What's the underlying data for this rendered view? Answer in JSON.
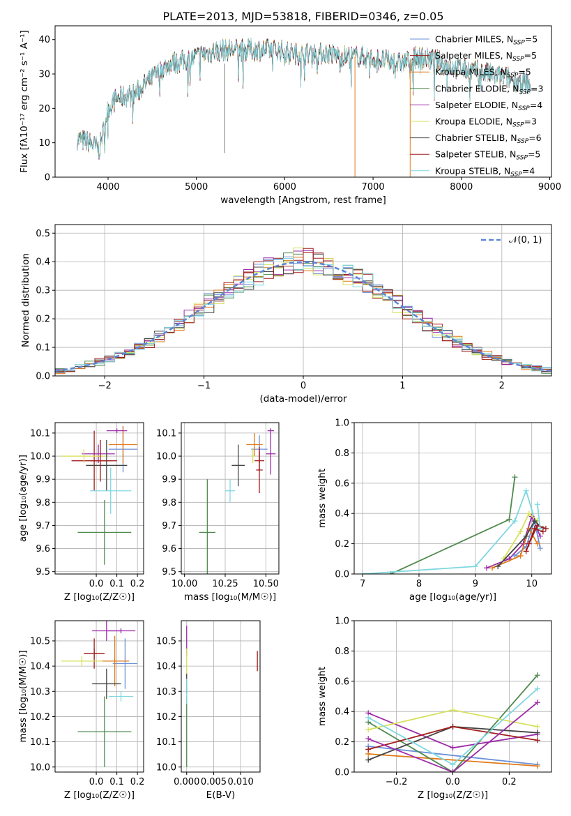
{
  "figure_title": "PLATE=2013, MJD=53818, FIBERID=0346, z=0.05",
  "models": [
    {
      "name": "Chabrier MILES",
      "nssp": "5",
      "color": "#6a8fd8"
    },
    {
      "name": "Salpeter MILES",
      "nssp": "5",
      "color": "#a11c1c"
    },
    {
      "name": "Kroupa MILES",
      "nssp": "5",
      "color": "#e07a18"
    },
    {
      "name": "Chabrier ELODIE",
      "nssp": "3",
      "color": "#4f8a4f"
    },
    {
      "name": "Salpeter ELODIE",
      "nssp": "4",
      "color": "#9c2aa8"
    },
    {
      "name": "Kroupa ELODIE",
      "nssp": "3",
      "color": "#d6e05a"
    },
    {
      "name": "Chabrier STELIB",
      "nssp": "6",
      "color": "#444444"
    },
    {
      "name": "Salpeter STELIB",
      "nssp": "5",
      "color": "#a11c1c"
    },
    {
      "name": "Kroupa STELIB",
      "nssp": "4",
      "color": "#7fd7e0"
    }
  ],
  "chart_data": [
    {
      "id": "spectrum",
      "type": "line",
      "title": "PLATE=2013, MJD=53818, FIBERID=0346, z=0.05",
      "xlabel": "wavelength [Angstrom, rest frame]",
      "ylabel": "Flux [fλ10⁻¹⁷ erg cm⁻² s⁻¹ A⁻¹]",
      "xlim": [
        3400,
        9020
      ],
      "ylim": [
        0,
        44
      ],
      "xticks": [
        4000,
        5000,
        6000,
        7000,
        8000,
        9000
      ],
      "yticks": [
        0,
        10,
        20,
        30,
        40
      ],
      "legend": "top-right",
      "continuum": [
        [
          3650,
          11
        ],
        [
          3800,
          10
        ],
        [
          3900,
          8
        ],
        [
          4000,
          20
        ],
        [
          4100,
          23
        ],
        [
          4300,
          24
        ],
        [
          4500,
          29
        ],
        [
          4700,
          33
        ],
        [
          4900,
          34
        ],
        [
          5100,
          36
        ],
        [
          5300,
          37
        ],
        [
          5500,
          37
        ],
        [
          5700,
          37
        ],
        [
          5900,
          37
        ],
        [
          6100,
          36
        ],
        [
          6300,
          36
        ],
        [
          6500,
          36
        ],
        [
          6700,
          35
        ],
        [
          6900,
          35
        ],
        [
          7100,
          34
        ],
        [
          7300,
          33
        ],
        [
          7500,
          35
        ],
        [
          7700,
          34
        ],
        [
          7900,
          32
        ],
        [
          8100,
          31
        ],
        [
          8300,
          30
        ],
        [
          8500,
          29
        ],
        [
          8780,
          27
        ]
      ],
      "drops": [
        {
          "x": 6795,
          "series": "Kroupa MILES"
        },
        {
          "x": 7420,
          "series": "Kroupa MILES"
        }
      ]
    },
    {
      "id": "residuals",
      "type": "histogram",
      "xlabel": "(data-model)/error",
      "ylabel": "Normed distribution",
      "xlim": [
        -2.5,
        2.5
      ],
      "ylim": [
        0,
        0.53
      ],
      "xticks": [
        -2,
        -1,
        0,
        1,
        2
      ],
      "yticks": [
        0.0,
        0.1,
        0.2,
        0.3,
        0.4,
        0.5
      ],
      "grid": true,
      "legend": "top-right",
      "legend_entries": [
        "𝒩(0, 1)"
      ],
      "reference_curve": "N(0,1)"
    },
    {
      "id": "age-vs-Z",
      "type": "errorbar",
      "xlabel": "Z [log₁₀(Z/Z☉)]",
      "ylabel": "age  [log₁₀(age/yr)]",
      "xlim": [
        -0.2,
        0.23
      ],
      "ylim": [
        9.49,
        10.145
      ],
      "xticks": [
        0.0,
        0.1,
        0.2
      ],
      "yticks": [
        9.5,
        9.6,
        9.7,
        9.8,
        9.9,
        10.0,
        10.1
      ],
      "grid": true,
      "points": [
        {
          "s": 0,
          "x": 0.13,
          "y": 10.03,
          "xerr": 0.07,
          "yerr": 0.1
        },
        {
          "s": 1,
          "x": -0.01,
          "y": 9.98,
          "xerr": 0.11,
          "yerr": 0.13
        },
        {
          "s": 2,
          "x": 0.13,
          "y": 10.05,
          "xerr": 0.07,
          "yerr": 0.08
        },
        {
          "s": 3,
          "x": 0.04,
          "y": 9.67,
          "xerr": 0.13,
          "yerr": 0.14
        },
        {
          "s": 4,
          "x": 0.01,
          "y": 10.01,
          "xerr": 0.08,
          "yerr": 0.04
        },
        {
          "s": 5,
          "x": -0.06,
          "y": 10.0,
          "xerr": 0.11,
          "yerr": 0.03
        },
        {
          "s": 6,
          "x": 0.05,
          "y": 9.96,
          "xerr": 0.1,
          "yerr": 0.11
        },
        {
          "s": 7,
          "x": 0.02,
          "y": 9.98,
          "xerr": 0.05,
          "yerr": 0.09
        },
        {
          "s": 8,
          "x": 0.07,
          "y": 9.85,
          "xerr": 0.1,
          "yerr": 0.1
        },
        {
          "s": 4,
          "x": 0.1,
          "y": 10.11,
          "xerr": 0.05,
          "yerr": 0.01
        }
      ]
    },
    {
      "id": "age-vs-mass",
      "type": "errorbar",
      "xlabel": "mass [log₁₀(M/M☉)]",
      "ylabel": "",
      "xlim": [
        9.98,
        10.58
      ],
      "ylim": [
        9.49,
        10.145
      ],
      "xticks": [
        10.0,
        10.25,
        10.5
      ],
      "yticks": [
        9.5,
        9.6,
        9.7,
        9.8,
        9.9,
        10.0,
        10.1
      ],
      "grid": true,
      "points": [
        {
          "s": 0,
          "x": 10.46,
          "y": 10.03,
          "xerr": 0.05,
          "yerr": 0.06
        },
        {
          "s": 1,
          "x": 10.46,
          "y": 9.94,
          "xerr": 0.02,
          "yerr": 0.1
        },
        {
          "s": 2,
          "x": 10.43,
          "y": 10.05,
          "xerr": 0.05,
          "yerr": 0.05
        },
        {
          "s": 3,
          "x": 10.14,
          "y": 9.67,
          "xerr": 0.05,
          "yerr": 0.23
        },
        {
          "s": 4,
          "x": 10.53,
          "y": 10.01,
          "xerr": 0.03,
          "yerr": 0.09
        },
        {
          "s": 5,
          "x": 10.42,
          "y": 10.0,
          "xerr": 0.01,
          "yerr": 0.03
        },
        {
          "s": 6,
          "x": 10.33,
          "y": 9.96,
          "xerr": 0.04,
          "yerr": 0.09
        },
        {
          "s": 7,
          "x": 10.46,
          "y": 9.98,
          "xerr": 0.03,
          "yerr": 0.04
        },
        {
          "s": 8,
          "x": 10.28,
          "y": 9.85,
          "xerr": 0.03,
          "yerr": 0.05
        },
        {
          "s": 4,
          "x": 10.53,
          "y": 10.11,
          "xerr": 0.02,
          "yerr": 0.01
        }
      ]
    },
    {
      "id": "weight-vs-age",
      "type": "line",
      "xlabel": "age  [log₁₀(age/yr)]",
      "ylabel": "mass weight",
      "xlim": [
        6.85,
        10.35
      ],
      "ylim": [
        0,
        1.0
      ],
      "xticks": [
        7,
        8,
        9,
        10
      ],
      "yticks": [
        0.0,
        0.2,
        0.4,
        0.6,
        0.8,
        1.0
      ],
      "grid": true,
      "series": [
        {
          "s": 3,
          "x": [
            7.5,
            9.6,
            9.7
          ],
          "y": [
            0.0,
            0.36,
            0.64
          ]
        },
        {
          "s": 8,
          "x": [
            7.0,
            9.0,
            9.7,
            9.9,
            10.1
          ],
          "y": [
            0.0,
            0.05,
            0.35,
            0.55,
            0.3
          ]
        },
        {
          "s": 4,
          "x": [
            9.2,
            9.6,
            9.85,
            10.0,
            10.15
          ],
          "y": [
            0.04,
            0.1,
            0.2,
            0.38,
            0.25
          ]
        },
        {
          "s": 5,
          "x": [
            9.5,
            9.8,
            9.95,
            10.1
          ],
          "y": [
            0.1,
            0.28,
            0.4,
            0.35
          ]
        },
        {
          "s": 0,
          "x": [
            9.7,
            9.9,
            10.05,
            10.15
          ],
          "y": [
            0.12,
            0.18,
            0.35,
            0.17
          ]
        },
        {
          "s": 2,
          "x": [
            9.3,
            9.8,
            9.95,
            10.1
          ],
          "y": [
            0.04,
            0.12,
            0.3,
            0.2
          ]
        },
        {
          "s": 6,
          "x": [
            9.4,
            9.9,
            10.05,
            10.2
          ],
          "y": [
            0.05,
            0.25,
            0.35,
            0.3
          ]
        },
        {
          "s": 1,
          "x": [
            9.9,
            10.05,
            10.2
          ],
          "y": [
            0.15,
            0.3,
            0.28
          ]
        },
        {
          "s": 7,
          "x": [
            9.95,
            10.1,
            10.25
          ],
          "y": [
            0.2,
            0.32,
            0.3
          ]
        },
        {
          "s": 8,
          "x": [
            10.1,
            10.15
          ],
          "y": [
            0.46,
            0.3
          ]
        }
      ]
    },
    {
      "id": "mass-vs-Z",
      "type": "errorbar",
      "xlabel": "Z [log₁₀(Z/Z☉)]",
      "ylabel": "mass [log₁₀(M/M☉)]",
      "xlim": [
        -0.2,
        0.23
      ],
      "ylim": [
        9.98,
        10.58
      ],
      "xticks": [
        0.0,
        0.1,
        0.2
      ],
      "yticks": [
        10.0,
        10.1,
        10.2,
        10.3,
        10.4,
        10.5
      ],
      "grid": true,
      "points": [
        {
          "s": 0,
          "x": 0.14,
          "y": 10.41,
          "xerr": 0.06,
          "yerr": 0.1
        },
        {
          "s": 1,
          "x": -0.01,
          "y": 10.45,
          "xerr": 0.05,
          "yerr": 0.06
        },
        {
          "s": 2,
          "x": 0.09,
          "y": 10.42,
          "xerr": 0.07,
          "yerr": 0.1
        },
        {
          "s": 3,
          "x": 0.04,
          "y": 10.14,
          "xerr": 0.13,
          "yerr": 0.14
        },
        {
          "s": 4,
          "x": 0.05,
          "y": 10.54,
          "xerr": 0.07,
          "yerr": 0.04
        },
        {
          "s": 5,
          "x": -0.07,
          "y": 10.42,
          "xerr": 0.1,
          "yerr": 0.02
        },
        {
          "s": 6,
          "x": 0.05,
          "y": 10.33,
          "xerr": 0.07,
          "yerr": 0.06
        },
        {
          "s": 7,
          "x": -0.01,
          "y": 10.45,
          "xerr": 0.05,
          "yerr": 0.02
        },
        {
          "s": 8,
          "x": 0.12,
          "y": 10.28,
          "xerr": 0.06,
          "yerr": 0.02
        },
        {
          "s": 4,
          "x": 0.12,
          "y": 10.54,
          "xerr": 0.07,
          "yerr": 0.01
        }
      ]
    },
    {
      "id": "mass-vs-ebv",
      "type": "errorbar",
      "xlabel": "E(B-V)",
      "ylabel": "",
      "xlim": [
        -0.001,
        0.0136
      ],
      "ylim": [
        9.98,
        10.58
      ],
      "xticks": [
        0.0,
        0.005,
        0.01
      ],
      "yticks": [
        10.0,
        10.1,
        10.2,
        10.3,
        10.4,
        10.5
      ],
      "grid": true,
      "points": [
        {
          "s": 3,
          "x": 0.0,
          "y": 10.14,
          "xerr": 0.0,
          "yerr": 0.14
        },
        {
          "s": 4,
          "x": 0.0,
          "y": 10.5,
          "xerr": 0.0,
          "yerr": 0.06
        },
        {
          "s": 5,
          "x": 0.0,
          "y": 10.42,
          "xerr": 0.0,
          "yerr": 0.05
        },
        {
          "s": 6,
          "x": 0.0,
          "y": 10.33,
          "xerr": 0.0,
          "yerr": 0.04
        },
        {
          "s": 8,
          "x": 0.0,
          "y": 10.3,
          "xerr": 0.0,
          "yerr": 0.05
        },
        {
          "s": 1,
          "x": 0.0131,
          "y": 10.42,
          "xerr": 0.0,
          "yerr": 0.04
        }
      ]
    },
    {
      "id": "weight-vs-Z",
      "type": "line",
      "xlabel": "Z [log₁₀(Z/Z☉)]",
      "ylabel": "mass weight",
      "xlim": [
        -0.35,
        0.35
      ],
      "ylim": [
        0,
        1.0
      ],
      "xticks": [
        -0.2,
        0.0,
        0.2
      ],
      "yticks": [
        0.0,
        0.2,
        0.4,
        0.6,
        0.8,
        1.0
      ],
      "grid": true,
      "series": [
        {
          "s": 0,
          "x": [
            -0.3,
            0.3
          ],
          "y": [
            0.17,
            0.05
          ]
        },
        {
          "s": 2,
          "x": [
            -0.3,
            0.3
          ],
          "y": [
            0.12,
            0.04
          ]
        },
        {
          "s": 3,
          "x": [
            -0.3,
            0.0,
            0.3
          ],
          "y": [
            0.33,
            0.0,
            0.64
          ]
        },
        {
          "s": 4,
          "x": [
            -0.3,
            0.0,
            0.3
          ],
          "y": [
            0.39,
            0.16,
            0.25
          ]
        },
        {
          "s": 5,
          "x": [
            -0.3,
            0.0,
            0.3
          ],
          "y": [
            0.28,
            0.41,
            0.3
          ]
        },
        {
          "s": 6,
          "x": [
            -0.3,
            0.0,
            0.3
          ],
          "y": [
            0.08,
            0.3,
            0.26
          ]
        },
        {
          "s": 7,
          "x": [
            -0.3,
            0.0,
            0.3
          ],
          "y": [
            0.15,
            0.3,
            0.21
          ]
        },
        {
          "s": 8,
          "x": [
            -0.3,
            0.0,
            0.3
          ],
          "y": [
            0.36,
            0.05,
            0.55
          ]
        },
        {
          "s": 4,
          "x": [
            -0.3,
            0.0,
            0.3
          ],
          "y": [
            0.22,
            0.0,
            0.46
          ]
        }
      ]
    }
  ]
}
